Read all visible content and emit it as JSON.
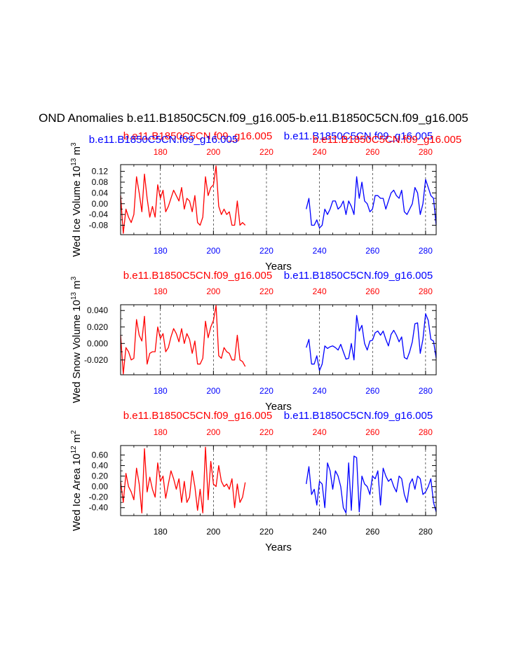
{
  "page_title": "OND Anomalies b.e11.B1850C5CN.f09_g16.005-b.e11.B1850C5CN.f09_g16.005",
  "colors": {
    "red": "#ff0000",
    "blue": "#0000ff",
    "axis": "#000000"
  },
  "chart_data": [
    {
      "type": "line",
      "name": "ice-volume",
      "top_labels": {
        "left": "b.e11.B1850C5CN.f09_g16.005",
        "right": "b.e11.B1850C5CN.f09_g16.005"
      },
      "overlap_labels": {
        "left": "b.e11.B1850C5CN.f09_g16.005",
        "right": "b.e11.B1850C5CN.f09_g16.005"
      },
      "ylabel_main": "Wed Ice Volume 10",
      "ylabel_exp": "13",
      "ylabel_unit": " m",
      "ylabel_unit_exp": "3",
      "xlabel": "Years",
      "xlim": [
        165,
        284
      ],
      "ylim": [
        -0.115,
        0.145
      ],
      "yticks": [
        -0.08,
        -0.06,
        -0.04,
        -0.02,
        0.0,
        0.02,
        0.04,
        0.06,
        0.08,
        0.1,
        0.12
      ],
      "ytick_labels": [
        "-0.08",
        "",
        "-0.04",
        "",
        "0.00",
        "",
        "0.04",
        "",
        "0.08",
        "",
        "0.12"
      ],
      "xticks": [
        180,
        200,
        220,
        240,
        260,
        280
      ],
      "xtick_labels": [
        "180",
        "200",
        "220",
        "240",
        "260",
        "280"
      ],
      "bottom_tick_color": "blue",
      "top_tick_color": "red",
      "series": [
        {
          "name": "red",
          "color": "red",
          "x0": 165,
          "values": [
            0.03,
            -0.11,
            -0.02,
            -0.05,
            -0.07,
            -0.04,
            0.1,
            0.04,
            -0.03,
            0.11,
            0.02,
            -0.05,
            -0.01,
            -0.05,
            0.07,
            0.02,
            0.05,
            -0.03,
            -0.01,
            0.02,
            0.05,
            0.03,
            0.01,
            0.06,
            -0.02,
            0.02,
            0.01,
            -0.03,
            0.03,
            -0.07,
            -0.08,
            -0.05,
            0.1,
            0.03,
            0.06,
            0.07,
            0.14,
            -0.01,
            -0.04,
            -0.02,
            -0.04,
            -0.03,
            -0.08,
            -0.08,
            0.01,
            -0.08,
            -0.07,
            -0.08
          ]
        },
        {
          "name": "blue",
          "color": "blue",
          "x0": 235,
          "values": [
            -0.02,
            0.02,
            -0.08,
            -0.08,
            -0.06,
            -0.09,
            -0.08,
            -0.02,
            -0.04,
            -0.02,
            0.01,
            0.01,
            -0.02,
            -0.01,
            0.01,
            -0.04,
            0.01,
            -0.01,
            -0.04,
            0.1,
            0.02,
            0.08,
            0.01,
            0.0,
            -0.03,
            -0.02,
            0.03,
            0.03,
            0.02,
            0.02,
            -0.02,
            0.01,
            0.04,
            0.05,
            0.03,
            0.02,
            0.05,
            -0.03,
            -0.04,
            -0.02,
            0.0,
            0.06,
            0.04,
            -0.04,
            0.0,
            0.09,
            0.06,
            0.03,
            0.02,
            -0.08
          ]
        }
      ]
    },
    {
      "type": "line",
      "name": "snow-volume",
      "top_labels": {
        "left": "b.e11.B1850C5CN.f09_g16.005",
        "right": "b.e11.B1850C5CN.f09_g16.005"
      },
      "ylabel_main": "Wed Snow Volume 10",
      "ylabel_exp": "13",
      "ylabel_unit": " m",
      "ylabel_unit_exp": "3",
      "xlabel": "Years",
      "xlim": [
        165,
        284
      ],
      "ylim": [
        -0.038,
        0.047
      ],
      "yticks": [
        -0.02,
        -0.01,
        0.0,
        0.01,
        0.02,
        0.03,
        0.04
      ],
      "ytick_labels": [
        "-0.020",
        "",
        "0.000",
        "",
        "0.020",
        "",
        "0.040"
      ],
      "xticks": [
        180,
        200,
        220,
        240,
        260,
        280
      ],
      "xtick_labels": [
        "180",
        "200",
        "220",
        "240",
        "260",
        "280"
      ],
      "bottom_tick_color": "blue",
      "top_tick_color": "red",
      "series": [
        {
          "name": "red",
          "color": "red",
          "x0": 165,
          "values": [
            0.01,
            -0.037,
            -0.005,
            -0.01,
            -0.02,
            -0.018,
            0.029,
            0.01,
            0.003,
            0.033,
            -0.025,
            -0.012,
            -0.01,
            -0.01,
            0.02,
            0.006,
            0.012,
            -0.01,
            -0.005,
            0.008,
            0.018,
            0.012,
            0.002,
            0.018,
            0.0,
            0.012,
            0.005,
            -0.012,
            0.003,
            -0.025,
            -0.025,
            -0.018,
            0.027,
            0.007,
            0.02,
            0.028,
            0.046,
            -0.015,
            -0.018,
            -0.005,
            -0.01,
            -0.012,
            -0.02,
            -0.02,
            0.01,
            -0.02,
            -0.022,
            -0.028
          ]
        },
        {
          "name": "blue",
          "color": "blue",
          "x0": 235,
          "values": [
            -0.005,
            0.005,
            -0.025,
            -0.025,
            -0.015,
            -0.033,
            -0.025,
            -0.003,
            -0.006,
            -0.004,
            -0.003,
            -0.005,
            -0.008,
            -0.001,
            -0.01,
            -0.019,
            -0.018,
            0.0,
            -0.02,
            0.034,
            0.015,
            0.022,
            0.0,
            -0.008,
            0.003,
            0.004,
            0.013,
            0.015,
            0.01,
            0.015,
            0.005,
            -0.003,
            0.011,
            0.016,
            0.01,
            0.002,
            0.008,
            -0.017,
            -0.019,
            -0.01,
            0.002,
            0.024,
            0.025,
            -0.012,
            0.005,
            0.036,
            0.028,
            0.005,
            0.003,
            -0.018
          ]
        }
      ]
    },
    {
      "type": "line",
      "name": "ice-area",
      "top_labels": {
        "left": "b.e11.B1850C5CN.f09_g16.005",
        "right": "b.e11.B1850C5CN.f09_g16.005"
      },
      "ylabel_main": "Wed Ice Area 10",
      "ylabel_exp": "12",
      "ylabel_unit": " m",
      "ylabel_unit_exp": "2",
      "xlabel": "Years",
      "xlim": [
        165,
        284
      ],
      "ylim": [
        -0.55,
        0.78
      ],
      "yticks": [
        -0.4,
        -0.3,
        -0.2,
        -0.1,
        0.0,
        0.1,
        0.2,
        0.3,
        0.4,
        0.5,
        0.6
      ],
      "ytick_labels": [
        "-0.40",
        "",
        "-0.20",
        "",
        "0.00",
        "",
        "0.20",
        "",
        "0.40",
        "",
        "0.60"
      ],
      "xticks": [
        180,
        200,
        220,
        240,
        260,
        280
      ],
      "xtick_labels": [
        "180",
        "200",
        "220",
        "240",
        "260",
        "280"
      ],
      "bottom_tick_color": "black",
      "top_tick_color": "red",
      "series": [
        {
          "name": "red",
          "color": "red",
          "x0": 165,
          "values": [
            0.1,
            -0.3,
            0.25,
            0.0,
            -0.1,
            -0.25,
            0.35,
            0.05,
            -0.5,
            0.72,
            -0.1,
            0.18,
            -0.05,
            -0.2,
            0.45,
            0.1,
            0.2,
            -0.22,
            0.05,
            0.3,
            0.15,
            -0.05,
            0.15,
            -0.3,
            0.1,
            -0.3,
            -0.2,
            0.3,
            0.0,
            -0.45,
            -0.05,
            -0.5,
            0.75,
            -0.25,
            0.48,
            0.05,
            0.0,
            0.4,
            0.1,
            0.0,
            0.05,
            -0.05,
            0.15,
            -0.4,
            0.05,
            -0.3,
            -0.2,
            0.08
          ]
        },
        {
          "name": "blue",
          "color": "blue",
          "x0": 235,
          "values": [
            0.05,
            0.38,
            -0.15,
            -0.05,
            -0.35,
            0.1,
            0.05,
            -0.4,
            0.45,
            0.3,
            -0.05,
            0.3,
            0.2,
            0.0,
            -0.4,
            -0.5,
            0.45,
            -0.45,
            0.58,
            0.55,
            -0.48,
            0.2,
            0.05,
            0.0,
            -0.15,
            0.2,
            0.15,
            0.3,
            -0.35,
            0.35,
            0.2,
            0.1,
            0.15,
            0.0,
            -0.1,
            0.2,
            0.15,
            -0.15,
            -0.3,
            0.05,
            0.15,
            -0.05,
            0.2,
            0.15,
            -0.15,
            -0.1,
            0.0,
            0.15,
            -0.3,
            -0.48
          ]
        }
      ]
    }
  ]
}
